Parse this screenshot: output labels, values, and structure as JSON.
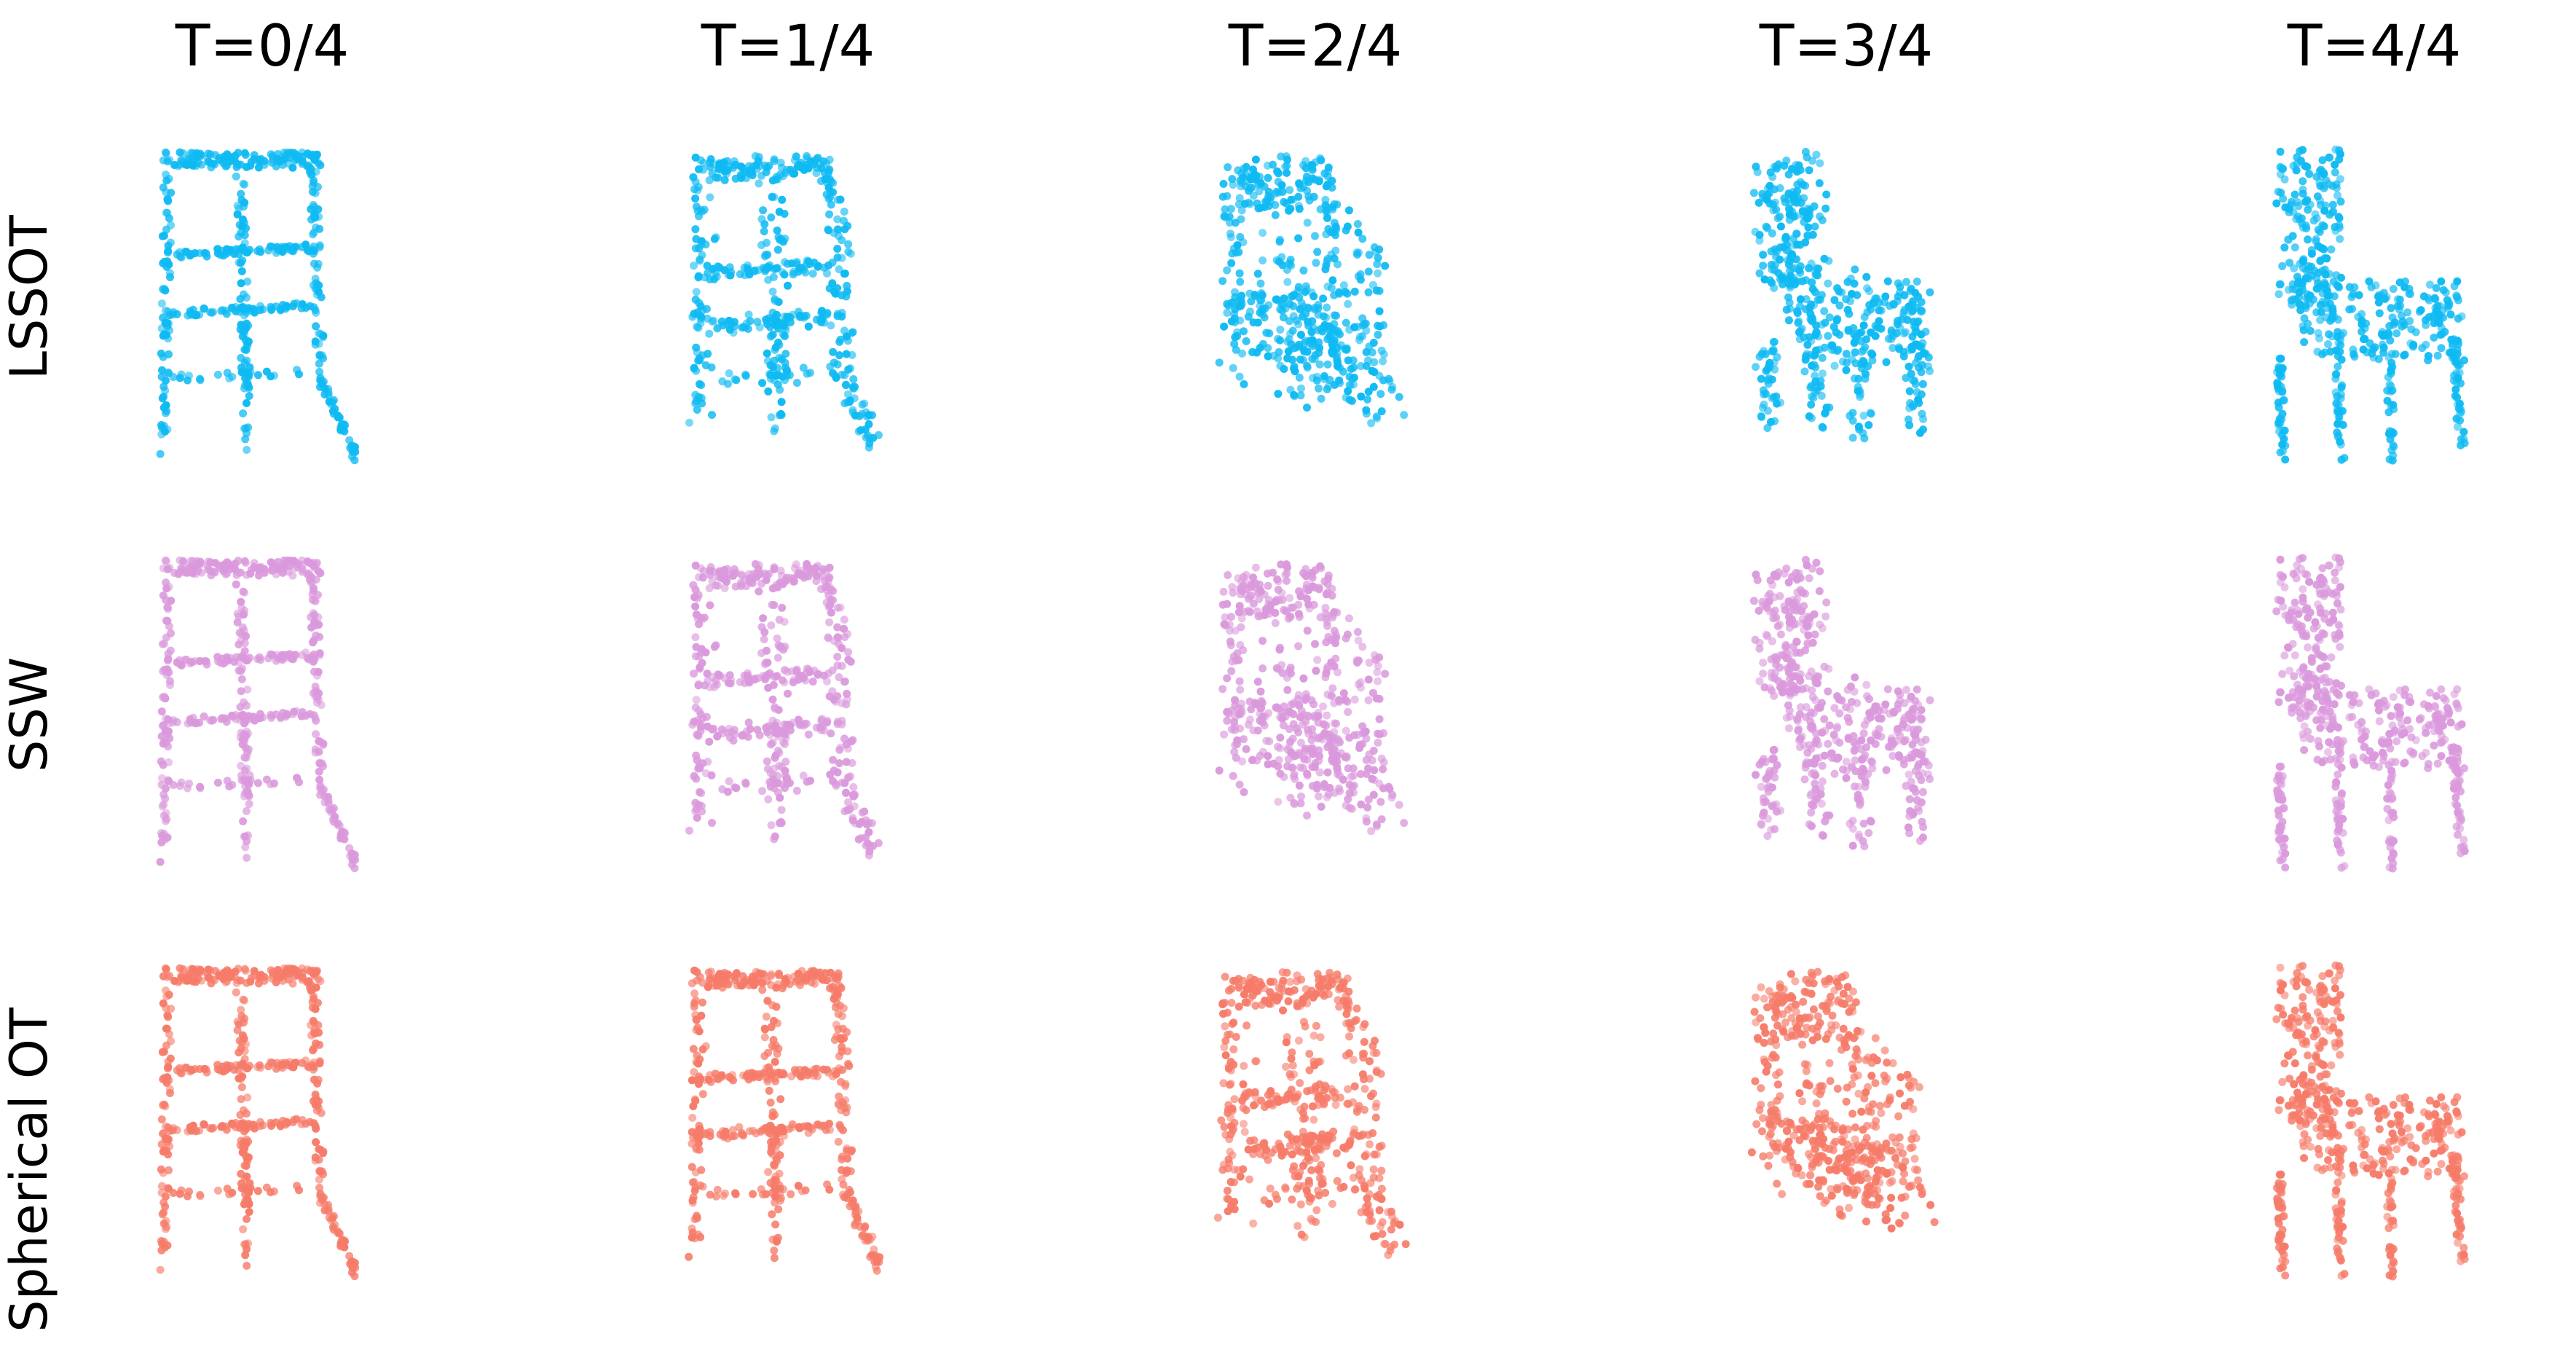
{
  "columns": [
    "T=0/4",
    "T=1/4",
    "T=2/4",
    "T=3/4",
    "T=4/4"
  ],
  "rows": [
    {
      "label": "LSSOT",
      "color": "#0fbaf2"
    },
    {
      "label": "SSW",
      "color": "#da99dc"
    },
    {
      "label": "Spherical OT",
      "color": "#f67b69"
    }
  ],
  "panel_content": "chair point cloud interpolation"
}
